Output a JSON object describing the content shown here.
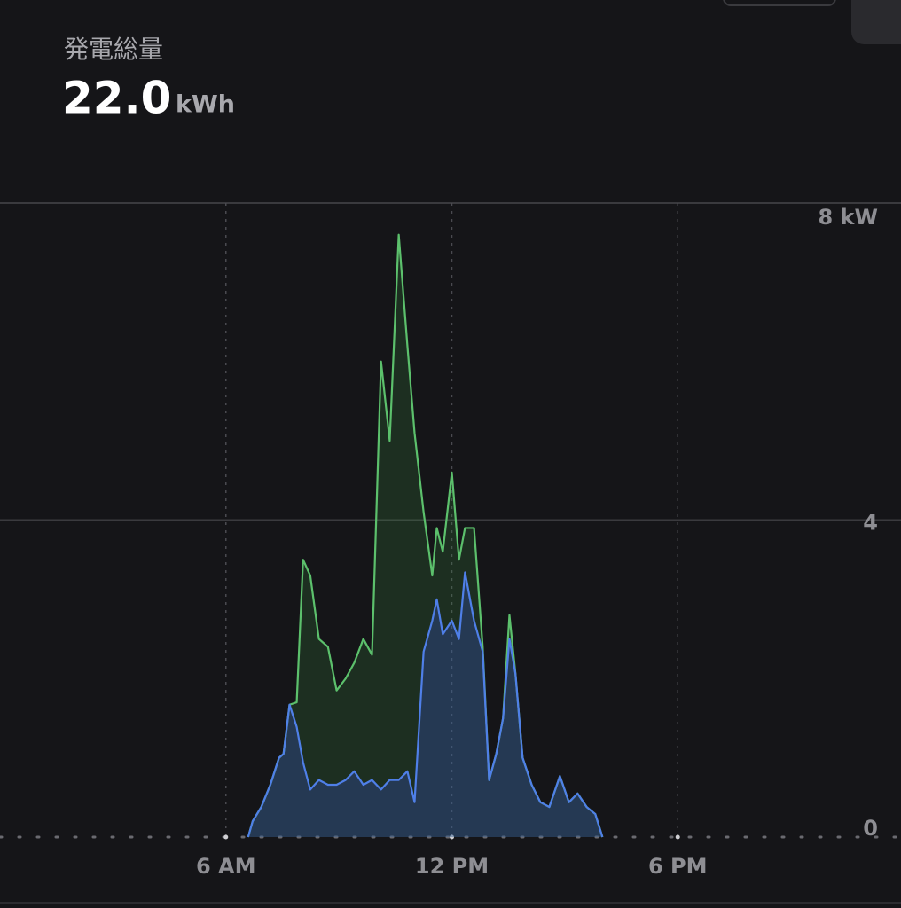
{
  "header": {
    "label": "発電総量",
    "value": "22.0",
    "unit": "kWh"
  },
  "chart_data": {
    "type": "area",
    "x": [
      6.59,
      6.71,
      6.94,
      7.18,
      7.41,
      7.53,
      7.69,
      7.88,
      8.05,
      8.24,
      8.47,
      8.71,
      8.94,
      9.18,
      9.41,
      9.65,
      9.88,
      10.12,
      10.35,
      10.59,
      10.82,
      11.01,
      11.25,
      11.48,
      11.6,
      11.76,
      12.0,
      12.19,
      12.35,
      12.59,
      12.82,
      12.99,
      13.18,
      13.36,
      13.53,
      13.69,
      13.88,
      14.12,
      14.35,
      14.59,
      14.87,
      15.11,
      15.34,
      15.58,
      15.81,
      16.0
    ],
    "series": [
      {
        "color": "#5cc06c",
        "fill": "rgba(60,140,70,0.22)",
        "values": [
          0,
          0.2,
          0.38,
          0.66,
          1.0,
          1.05,
          1.67,
          1.7,
          3.5,
          3.3,
          2.5,
          2.4,
          1.85,
          2.0,
          2.2,
          2.5,
          2.3,
          6.0,
          5.0,
          7.6,
          6.2,
          5.1,
          4.1,
          3.3,
          3.9,
          3.6,
          4.6,
          3.5,
          3.9,
          3.9,
          2.4,
          0.72,
          1.05,
          1.5,
          2.8,
          2.06,
          1.0,
          0.66,
          0.44,
          0.38,
          0.77,
          0.44,
          0.55,
          0.38,
          0.29,
          0
        ]
      },
      {
        "color": "#4f7fe8",
        "fill": "rgba(55,80,190,0.32)",
        "values": [
          0,
          0.2,
          0.38,
          0.66,
          1.0,
          1.05,
          1.67,
          1.39,
          0.94,
          0.6,
          0.72,
          0.66,
          0.66,
          0.72,
          0.83,
          0.66,
          0.72,
          0.6,
          0.72,
          0.72,
          0.83,
          0.44,
          2.34,
          2.73,
          3.0,
          2.56,
          2.73,
          2.5,
          3.34,
          2.73,
          2.34,
          0.72,
          1.05,
          1.5,
          2.5,
          2.06,
          1.0,
          0.66,
          0.44,
          0.38,
          0.77,
          0.44,
          0.55,
          0.38,
          0.29,
          0
        ]
      }
    ],
    "xlim": [
      0,
      24
    ],
    "xticks": [
      {
        "value": 6,
        "label": "6 AM"
      },
      {
        "value": 12,
        "label": "12 PM"
      },
      {
        "value": 18,
        "label": "6 PM"
      }
    ],
    "ylim": [
      0,
      8
    ],
    "yticks": [
      0,
      4,
      {
        "value": 8,
        "label": "8 kW"
      }
    ],
    "grid": true
  }
}
